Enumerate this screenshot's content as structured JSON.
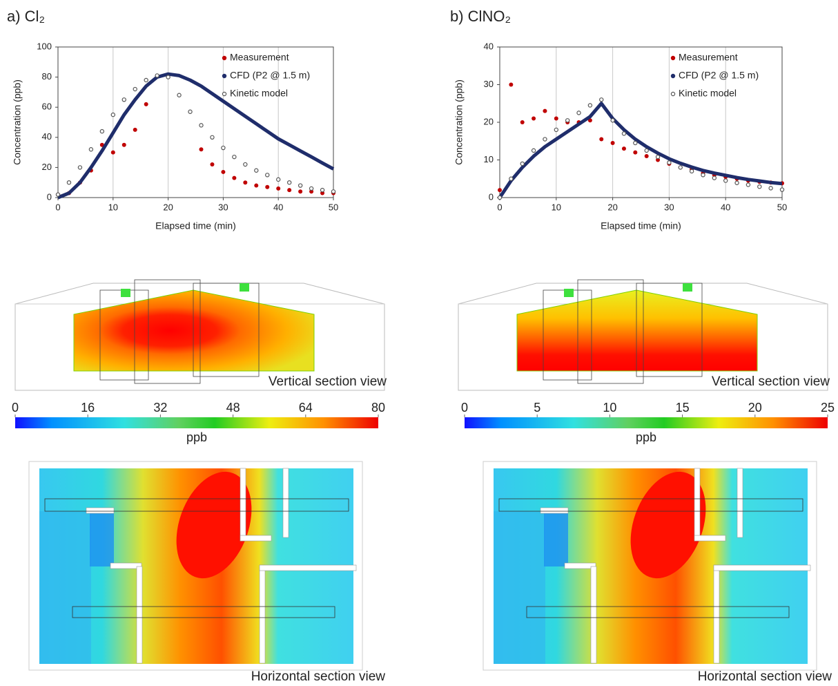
{
  "chart_data": [
    {
      "type": "scatter",
      "title": "a) Cl₂",
      "x_label": "Elapsed time (min)",
      "y_label": "Concentration (ppb)",
      "xlim": [
        0,
        50
      ],
      "xticks": [
        0,
        10,
        20,
        30,
        40,
        50
      ],
      "ylim": [
        0,
        100
      ],
      "yticks": [
        0,
        20,
        40,
        60,
        80,
        100
      ],
      "grid": true,
      "legend": "upper right",
      "x": [
        0,
        2,
        4,
        6,
        8,
        10,
        12,
        14,
        16,
        18,
        20,
        22,
        24,
        26,
        28,
        30,
        32,
        34,
        36,
        38,
        40,
        42,
        44,
        46,
        48,
        50
      ],
      "series": [
        {
          "name": "Measurement",
          "color": "#c00000",
          "marker": "dot",
          "values": [
            2,
            3,
            10,
            18,
            35,
            30,
            35,
            45,
            62,
            null,
            null,
            null,
            null,
            32,
            22,
            17,
            13,
            10,
            8,
            7,
            6,
            5,
            4,
            4,
            3,
            3
          ]
        },
        {
          "name": "CFD (P2 @ 1.5 m)",
          "color": "#1f2d6b",
          "marker": "line",
          "values": [
            0,
            3,
            10,
            20,
            31,
            43,
            55,
            65,
            74,
            80,
            82,
            81,
            78,
            74,
            69,
            64,
            59,
            54,
            49,
            44,
            39,
            35,
            31,
            27,
            23,
            19
          ]
        },
        {
          "name": "Kinetic model",
          "color": "#555555",
          "marker": "ring",
          "values": [
            2,
            10,
            20,
            32,
            44,
            55,
            65,
            72,
            78,
            81,
            80,
            68,
            57,
            48,
            40,
            33,
            27,
            22,
            18,
            15,
            12,
            10,
            8,
            6,
            5,
            4
          ]
        }
      ]
    },
    {
      "type": "scatter",
      "title": "b) ClNO₂",
      "x_label": "Elapsed time (min)",
      "y_label": "Concentration (ppb)",
      "xlim": [
        0,
        50
      ],
      "xticks": [
        0,
        10,
        20,
        30,
        40,
        50
      ],
      "ylim": [
        0,
        40
      ],
      "yticks": [
        0,
        10,
        20,
        30,
        40
      ],
      "grid": true,
      "legend": "upper right",
      "x": [
        0,
        2,
        4,
        6,
        8,
        10,
        12,
        14,
        16,
        18,
        20,
        22,
        24,
        26,
        28,
        30,
        32,
        34,
        36,
        38,
        40,
        42,
        44,
        46,
        48,
        50
      ],
      "series": [
        {
          "name": "Measurement",
          "color": "#c00000",
          "marker": "dot",
          "values": [
            2,
            30,
            20,
            21,
            23,
            21,
            20,
            20,
            20.5,
            15.5,
            14.5,
            13,
            12,
            11,
            10,
            9,
            8,
            7.5,
            6.5,
            6,
            5.5,
            5,
            4.5,
            4.2,
            4,
            3.8
          ]
        },
        {
          "name": "CFD (P2 @ 1.5 m)",
          "color": "#1f2d6b",
          "marker": "line",
          "values": [
            0,
            4.5,
            8,
            11,
            13.5,
            15.5,
            17.5,
            19.5,
            21.5,
            25,
            21,
            18,
            15.5,
            13.5,
            11.8,
            10.3,
            9.1,
            8.1,
            7.2,
            6.5,
            5.9,
            5.3,
            4.8,
            4.4,
            4,
            3.7
          ]
        },
        {
          "name": "Kinetic model",
          "color": "#555555",
          "marker": "ring",
          "values": [
            0,
            5,
            9,
            12.5,
            15.5,
            18,
            20.5,
            22.5,
            24.5,
            26,
            20.5,
            17,
            14.5,
            12.5,
            10.8,
            9.3,
            8,
            7,
            6,
            5.2,
            4.5,
            3.9,
            3.4,
            2.9,
            2.5,
            2.1
          ]
        }
      ]
    }
  ],
  "sections": [
    {
      "vertical_label": "Vertical section view",
      "colorbar": {
        "lim": [
          0,
          80
        ],
        "ticks": [
          0,
          16,
          32,
          48,
          64,
          80
        ],
        "label": "ppb"
      },
      "horizontal_label": "Horizontal section view"
    },
    {
      "vertical_label": "Vertical section view",
      "colorbar": {
        "lim": [
          0,
          25
        ],
        "ticks": [
          0,
          5,
          10,
          15,
          20,
          25
        ],
        "label": "ppb"
      },
      "horizontal_label": "Horizontal section view"
    }
  ]
}
